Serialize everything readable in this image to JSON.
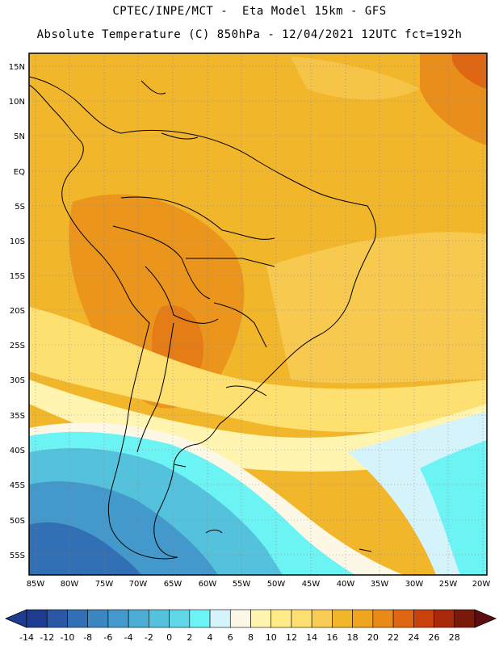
{
  "header": {
    "line1": "CPTEC/INPE/MCT -  Eta Model 15km - GFS",
    "line2": "Absolute Temperature (C) 850hPa - 12/04/2021 12UTC fct=192h"
  },
  "map": {
    "lon_labels": [
      "85W",
      "80W",
      "75W",
      "70W",
      "65W",
      "60W",
      "55W",
      "50W",
      "45W",
      "40W",
      "35W",
      "30W",
      "25W",
      "20W"
    ],
    "lat_labels": [
      "15N",
      "10N",
      "5N",
      "EQ",
      "5S",
      "10S",
      "15S",
      "20S",
      "25S",
      "30S",
      "35S",
      "40S",
      "45S",
      "50S",
      "55S"
    ],
    "gridlines": true
  },
  "colorbar": {
    "labels": [
      "-14",
      "-12",
      "-10",
      "-8",
      "-6",
      "-4",
      "-2",
      "0",
      "2",
      "4",
      "6",
      "8",
      "10",
      "12",
      "14",
      "16",
      "18",
      "20",
      "22",
      "24",
      "26",
      "28"
    ],
    "colors": [
      "#1d3b8f",
      "#2a58a6",
      "#3270b6",
      "#3a87c4",
      "#4399cc",
      "#4badd4",
      "#54c2dc",
      "#5fd7e6",
      "#6cf4f4",
      "#d4f3fb",
      "#fdf8e6",
      "#fff5b0",
      "#ffeb88",
      "#fde070",
      "#f8cc55",
      "#f2b62a",
      "#f0a520",
      "#e88a18",
      "#df6612",
      "#c8420c",
      "#a82a0a",
      "#7a1a0a"
    ]
  }
}
